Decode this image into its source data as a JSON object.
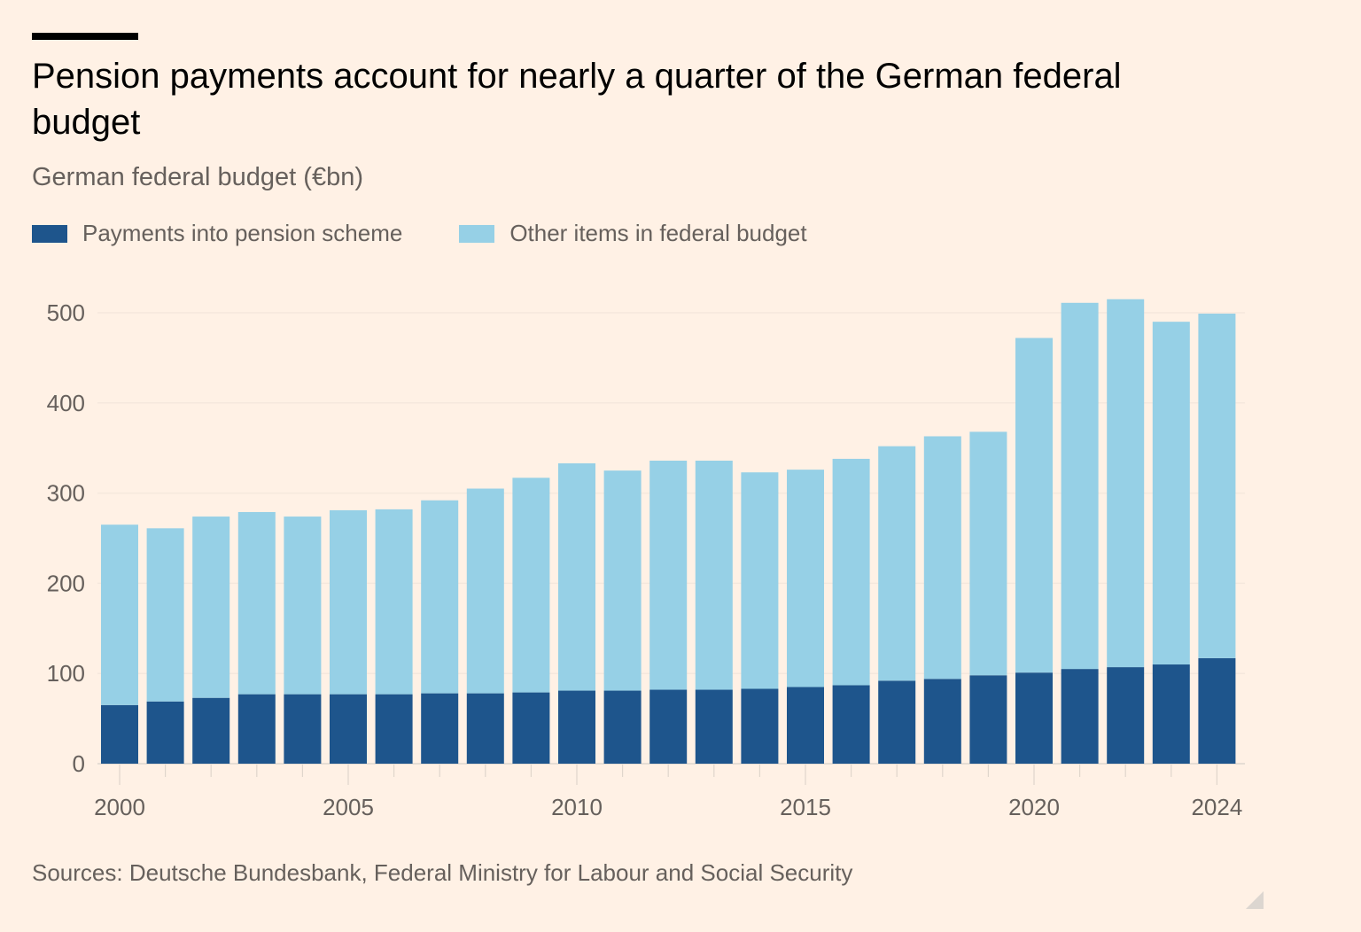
{
  "header": {
    "title": "Pension payments account for nearly a quarter of the German federal budget",
    "subtitle": "German federal budget (€bn)"
  },
  "legend": [
    {
      "label": "Payments into pension scheme",
      "color": "#1e558c"
    },
    {
      "label": "Other items in federal budget",
      "color": "#96d0e6"
    }
  ],
  "footer": {
    "source": "Sources: Deutsche Bundesbank, Federal Ministry for Labour and Social Security"
  },
  "chart_data": {
    "type": "bar",
    "stacked": true,
    "title": "Pension payments account for nearly a quarter of the German federal budget",
    "subtitle": "German federal budget (€bn)",
    "xlabel": "",
    "ylabel": "€bn",
    "ylim": [
      0,
      500
    ],
    "yticks": [
      0,
      100,
      200,
      300,
      400,
      500
    ],
    "xtick_labels": [
      "2000",
      "2005",
      "2010",
      "2015",
      "2020",
      "2024"
    ],
    "grid": true,
    "legend_position": "top-left",
    "categories": [
      "2000",
      "2001",
      "2002",
      "2003",
      "2004",
      "2005",
      "2006",
      "2007",
      "2008",
      "2009",
      "2010",
      "2011",
      "2012",
      "2013",
      "2014",
      "2015",
      "2016",
      "2017",
      "2018",
      "2019",
      "2020",
      "2021",
      "2022",
      "2023",
      "2024"
    ],
    "series": [
      {
        "name": "Payments into pension scheme",
        "color": "#1e558c",
        "values": [
          65,
          69,
          73,
          77,
          77,
          77,
          77,
          78,
          78,
          79,
          81,
          81,
          82,
          82,
          83,
          85,
          87,
          92,
          94,
          98,
          101,
          105,
          107,
          110,
          117
        ]
      },
      {
        "name": "Other items in federal budget",
        "color": "#96d0e6",
        "values": [
          200,
          192,
          201,
          202,
          197,
          204,
          205,
          214,
          227,
          238,
          252,
          244,
          254,
          254,
          240,
          241,
          251,
          260,
          269,
          270,
          371,
          406,
          408,
          380,
          382
        ]
      }
    ],
    "totals": [
      265,
      261,
      274,
      279,
      274,
      281,
      282,
      292,
      305,
      317,
      333,
      325,
      336,
      336,
      323,
      326,
      338,
      352,
      363,
      368,
      472,
      511,
      515,
      490,
      499
    ]
  }
}
